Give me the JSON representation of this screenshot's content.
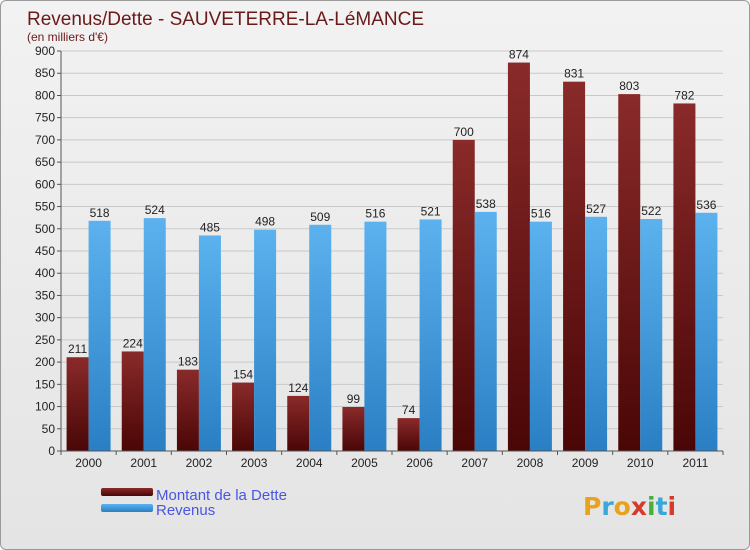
{
  "chart_data": {
    "type": "bar",
    "title": "Revenus/Dette - SAUVETERRE-LA-LéMANCE",
    "subtitle": "(en milliers d'€)",
    "categories": [
      "2000",
      "2001",
      "2002",
      "2003",
      "2004",
      "2005",
      "2006",
      "2007",
      "2008",
      "2009",
      "2010",
      "2011"
    ],
    "series": [
      {
        "name": "Montant de la Dette",
        "color": "#7a1b1b",
        "values": [
          211,
          224,
          183,
          154,
          124,
          99,
          74,
          700,
          874,
          831,
          803,
          782
        ]
      },
      {
        "name": "Revenus",
        "color": "#4aa3e6",
        "values": [
          518,
          524,
          485,
          498,
          509,
          516,
          521,
          538,
          516,
          527,
          522,
          536
        ]
      }
    ],
    "ylim": [
      0,
      900
    ],
    "yticks": [
      0,
      50,
      100,
      150,
      200,
      250,
      300,
      350,
      400,
      450,
      500,
      550,
      600,
      650,
      700,
      750,
      800,
      850,
      900
    ],
    "grid": true,
    "legend": "bottom-left"
  },
  "logo": {
    "letters": [
      "P",
      "r",
      "o",
      "x",
      "i",
      "t",
      "i"
    ],
    "colors": [
      "#e8a21c",
      "#3aa7d8",
      "#e8a21c",
      "#d83a2a",
      "#4cae3c",
      "#3aa7d8",
      "#d83a2a"
    ]
  }
}
